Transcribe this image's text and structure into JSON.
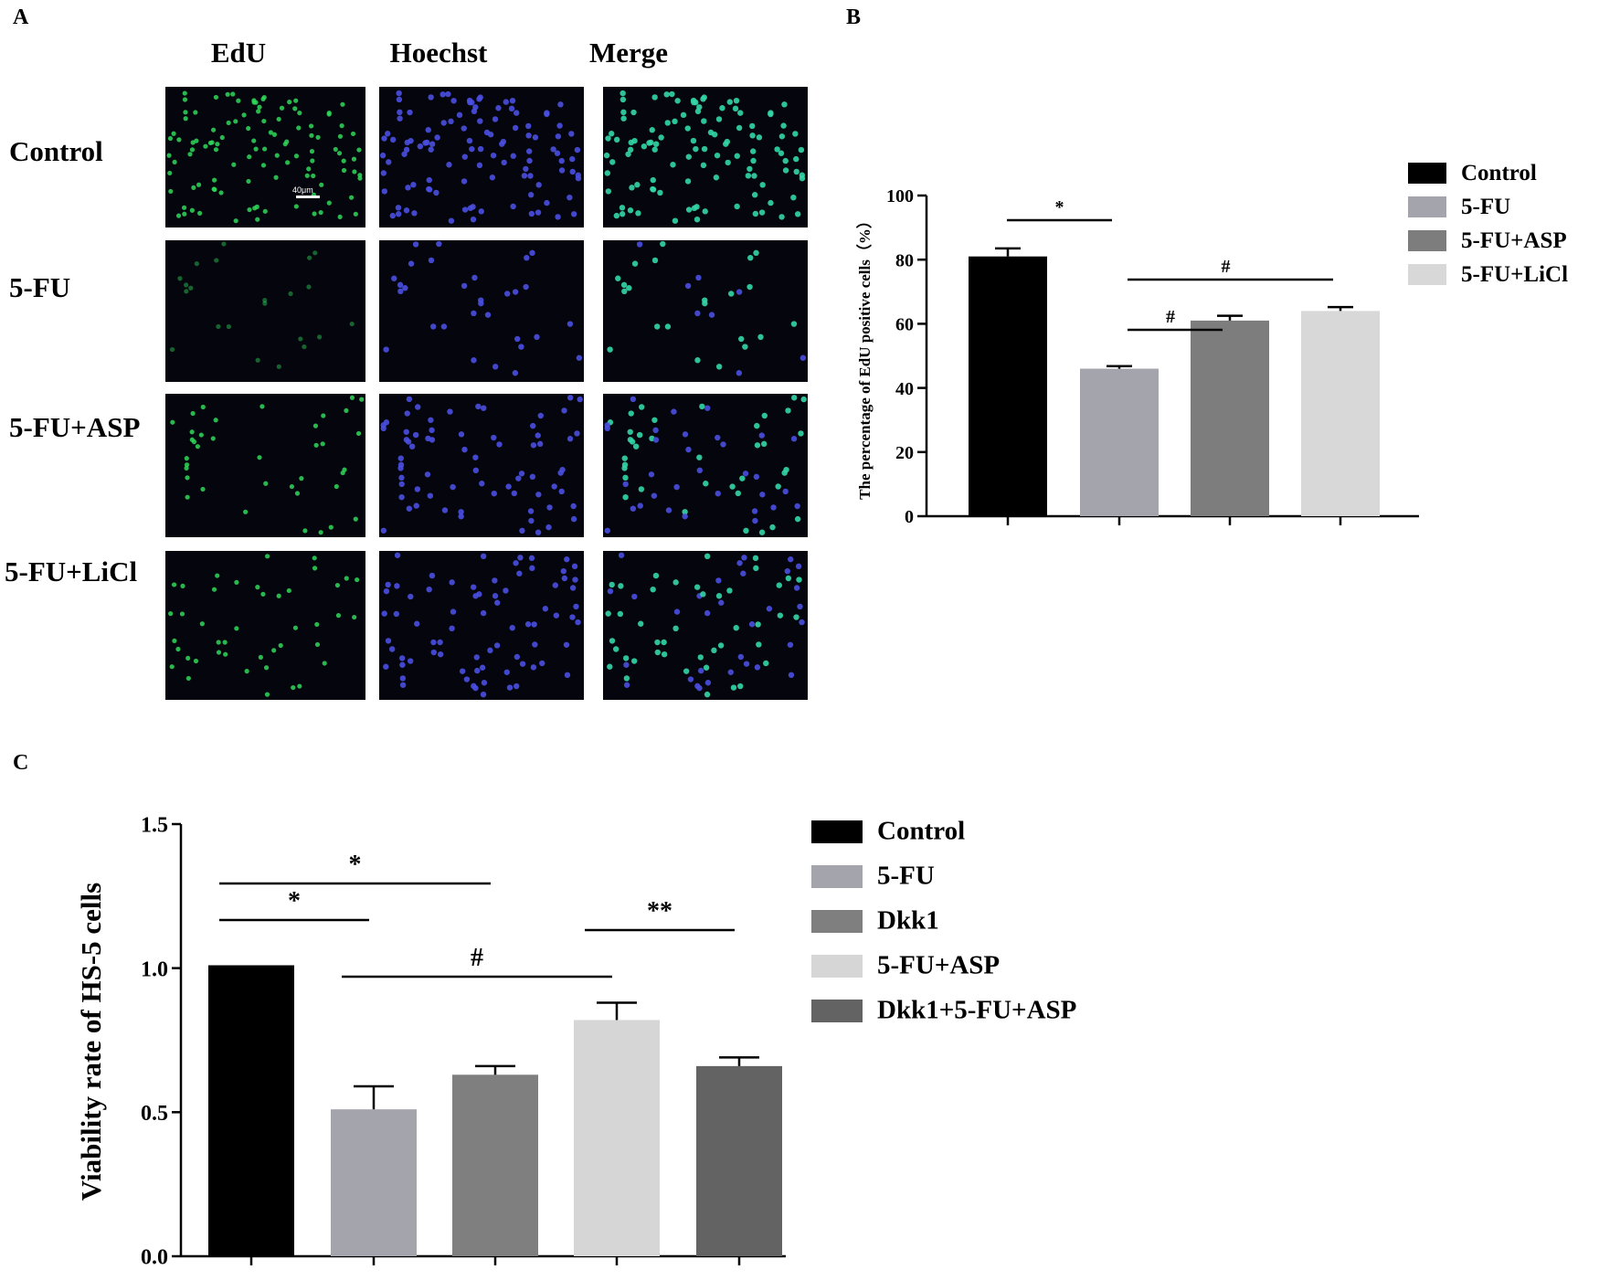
{
  "panel_a": {
    "letter": "A",
    "columns": [
      "EdU",
      "Hoechst",
      "Merge"
    ],
    "rows": [
      "Control",
      "5-FU",
      "5-FU+ASP",
      "5-FU+LiCl"
    ],
    "scale_bar_label": "40μm",
    "channel_colors": {
      "edu": "#2fd85a",
      "hoechst": "#4a4fe0",
      "merge_green": "#33d7a8"
    },
    "cell_counts": [
      110,
      30,
      70,
      75
    ]
  },
  "panel_b": {
    "letter": "B"
  },
  "panel_c": {
    "letter": "C"
  },
  "chart_data": [
    {
      "type": "bar",
      "panel": "B",
      "categories": [
        "Control",
        "5-FU",
        "5-FU+ASP",
        "5-FU+LiCl"
      ],
      "values": [
        81,
        46,
        61,
        64
      ],
      "errors": [
        2.5,
        0.8,
        1.5,
        1.2
      ],
      "colors": [
        "#000000",
        "#a4a4ac",
        "#7d7d7d",
        "#d8d8d8"
      ],
      "ylabel": "The percentage of EdU positive cells（%）",
      "ylim": [
        0,
        100
      ],
      "yticks": [
        0,
        20,
        40,
        60,
        80,
        100
      ],
      "legend": [
        "Control",
        "5-FU",
        "5-FU+ASP",
        "5-FU+LiCl"
      ],
      "legend_position": "right",
      "significance": [
        {
          "from": 0,
          "to": 1,
          "label": "*"
        },
        {
          "from": 1,
          "to": 3,
          "label": "#"
        },
        {
          "from": 1,
          "to": 2,
          "label": "#"
        }
      ]
    },
    {
      "type": "bar",
      "panel": "C",
      "categories": [
        "Control",
        "5-FU",
        "Dkk1",
        "5-FU+ASP",
        "Dkk1+5-FU+ASP"
      ],
      "values": [
        1.01,
        0.51,
        0.63,
        0.82,
        0.66
      ],
      "errors": [
        0,
        0.08,
        0.03,
        0.06,
        0.03
      ],
      "colors": [
        "#000000",
        "#a4a4ac",
        "#7f7f7f",
        "#d6d6d6",
        "#636363"
      ],
      "ylabel": "Viability rate of HS-5 cells",
      "ylim": [
        0,
        1.5
      ],
      "yticks": [
        "0.0",
        "0.5",
        "1.0",
        "1.5"
      ],
      "legend": [
        "Control",
        "5-FU",
        "Dkk1",
        "5-FU+ASP",
        "Dkk1+5-FU+ASP"
      ],
      "legend_position": "right",
      "significance": [
        {
          "from": 0,
          "to": 2,
          "label": "*"
        },
        {
          "from": 0,
          "to": 1,
          "label": "*"
        },
        {
          "from": 1,
          "to": 3,
          "label": "#"
        },
        {
          "from": 3,
          "to": 4,
          "label": "**"
        }
      ]
    }
  ]
}
